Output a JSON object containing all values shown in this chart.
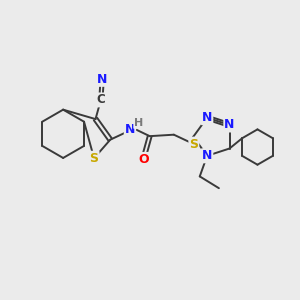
{
  "bg_color": "#ebebeb",
  "bond_color": "#3a3a3a",
  "atom_colors": {
    "N": "#1a1aff",
    "S": "#c8a800",
    "O": "#ff0000",
    "C": "#3a3a3a",
    "H": "#7a7a7a"
  },
  "figsize": [
    3.0,
    3.0
  ],
  "dpi": 100
}
